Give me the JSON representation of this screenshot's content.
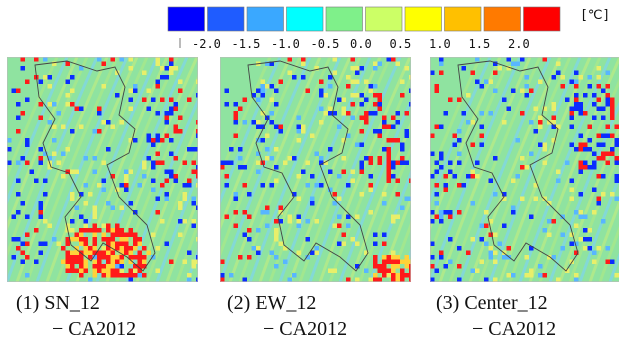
{
  "legend": {
    "unit": "[℃]",
    "colors": [
      "#0000ff",
      "#1f5cff",
      "#3aa8ff",
      "#00ffff",
      "#7ff08a",
      "#ccff66",
      "#ffff00",
      "#ffc000",
      "#ff7a00",
      "#ff0000"
    ],
    "ticks": [
      "-2.0",
      "-1.5",
      "-1.0",
      "-0.5",
      "0.0",
      "0.5",
      "1.0",
      "1.5",
      "2.0"
    ]
  },
  "panels": [
    {
      "id": "sn",
      "caption_line1": "(1) SN_12",
      "caption_line2": "− CA2012"
    },
    {
      "id": "ew",
      "caption_line1": "(2) EW_12",
      "caption_line2": "− CA2012"
    },
    {
      "id": "center",
      "caption_line1": "(3) Center_12",
      "caption_line2": "− CA2012"
    }
  ]
}
